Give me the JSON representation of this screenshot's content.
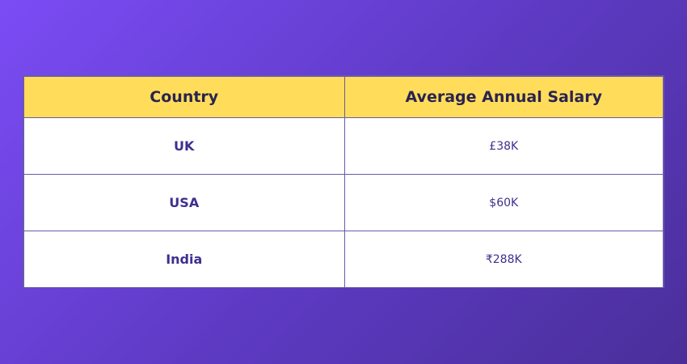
{
  "table": {
    "headers": [
      "Country",
      "Average Annual Salary"
    ],
    "rows": [
      {
        "country": "UK",
        "salary": "£38K"
      },
      {
        "country": "USA",
        "salary": "$60K"
      },
      {
        "country": "India",
        "salary": "₹288K"
      }
    ]
  },
  "colors": {
    "background_start": "#7b4cf5",
    "background_end": "#4a2f9a",
    "header_bg": "#ffdd5b",
    "text": "#3f2f8f"
  }
}
